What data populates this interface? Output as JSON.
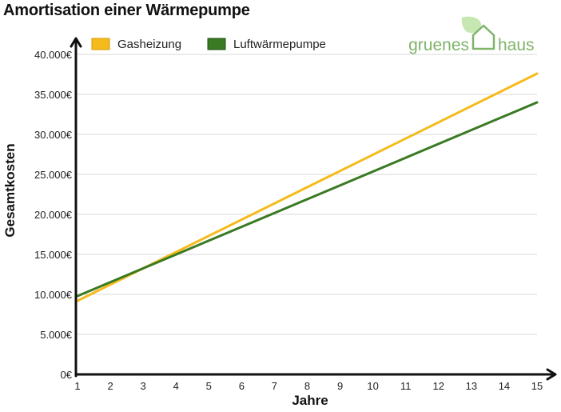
{
  "title": "Amortisation einer Wärmepumpe",
  "logo": {
    "word1": "gruenes",
    "word2": "haus",
    "color": "#7fb46a"
  },
  "chart_data": {
    "type": "line",
    "xlabel": "Jahre",
    "ylabel": "Gesamtkosten",
    "x": [
      1,
      15
    ],
    "xticks": [
      1,
      2,
      3,
      4,
      5,
      6,
      7,
      8,
      9,
      10,
      11,
      12,
      13,
      14,
      15
    ],
    "ylim": [
      0,
      40000
    ],
    "yticks": [
      0,
      5000,
      10000,
      15000,
      20000,
      25000,
      30000,
      35000,
      40000
    ],
    "ytick_labels": [
      "0€",
      "5.000€",
      "10.000€",
      "15.000€",
      "20.000€",
      "25.000€",
      "30.000€",
      "35.000€",
      "40.000€"
    ],
    "grid": true,
    "legend_position": "top-left",
    "series": [
      {
        "name": "Gasheizung",
        "color": "#f5bb1c",
        "values": [
          9200,
          37600
        ]
      },
      {
        "name": "Luftwärmepumpe",
        "color": "#3a7a23",
        "values": [
          9800,
          34000
        ]
      }
    ]
  }
}
